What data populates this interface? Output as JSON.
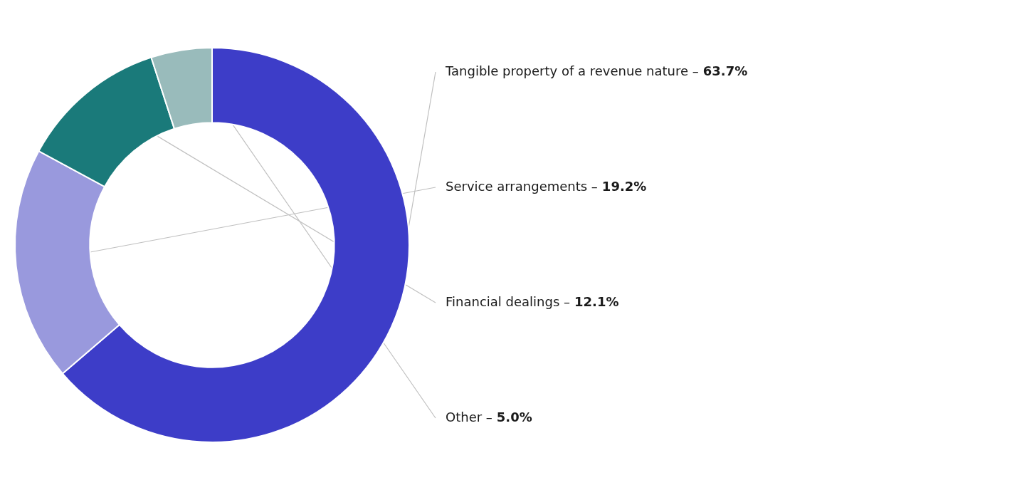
{
  "chart_data": {
    "type": "donut",
    "categories": [
      "Tangible property of a revenue nature –",
      "Service arrangements –",
      "Financial dealings –",
      "Other –"
    ],
    "values": [
      63.7,
      19.2,
      12.1,
      5.0
    ],
    "value_labels": [
      "63.7%",
      "19.2%",
      "12.1%",
      "5.0%"
    ],
    "colors": [
      "#3d3dc8",
      "#9999dd",
      "#1a7a7a",
      "#99bbbb"
    ],
    "data_labels": true
  }
}
